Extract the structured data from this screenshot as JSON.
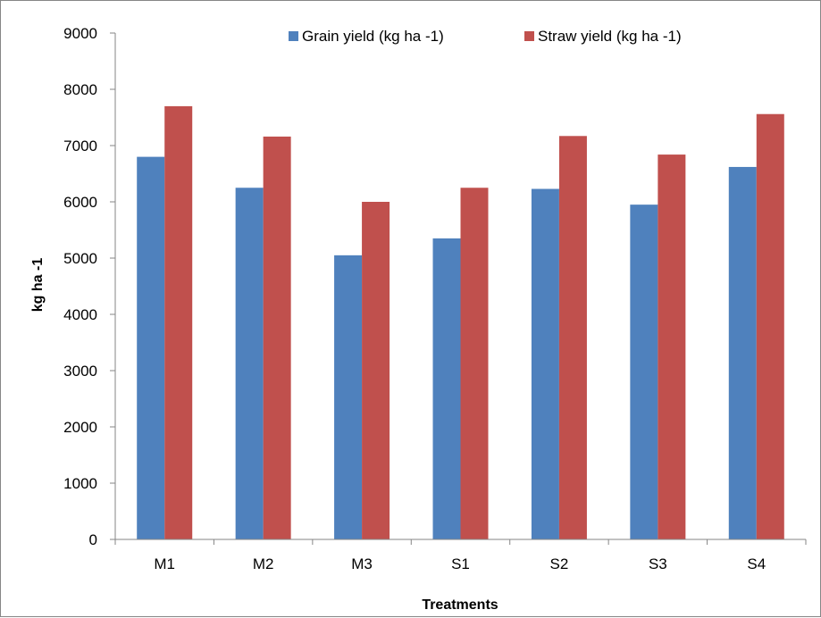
{
  "chart_data": {
    "type": "bar",
    "categories": [
      "M1",
      "M2",
      "M3",
      "S1",
      "S2",
      "S3",
      "S4"
    ],
    "series": [
      {
        "name": "Grain yield (kg ha -1)",
        "color": "#4F81BD",
        "values": [
          6800,
          6250,
          5050,
          5350,
          6230,
          5950,
          6620
        ]
      },
      {
        "name": "Straw yield (kg ha -1)",
        "color": "#C0504D",
        "values": [
          7700,
          7160,
          6000,
          6250,
          7170,
          6840,
          7560
        ]
      }
    ],
    "title": "",
    "xlabel": "Treatments",
    "ylabel": "kg ha -1",
    "ylim": [
      0,
      9000
    ],
    "yticks": [
      "0",
      "1000",
      "2000",
      "3000",
      "4000",
      "5000",
      "6000",
      "7000",
      "8000",
      "9000"
    ],
    "grid": false,
    "legend_position": "top"
  }
}
